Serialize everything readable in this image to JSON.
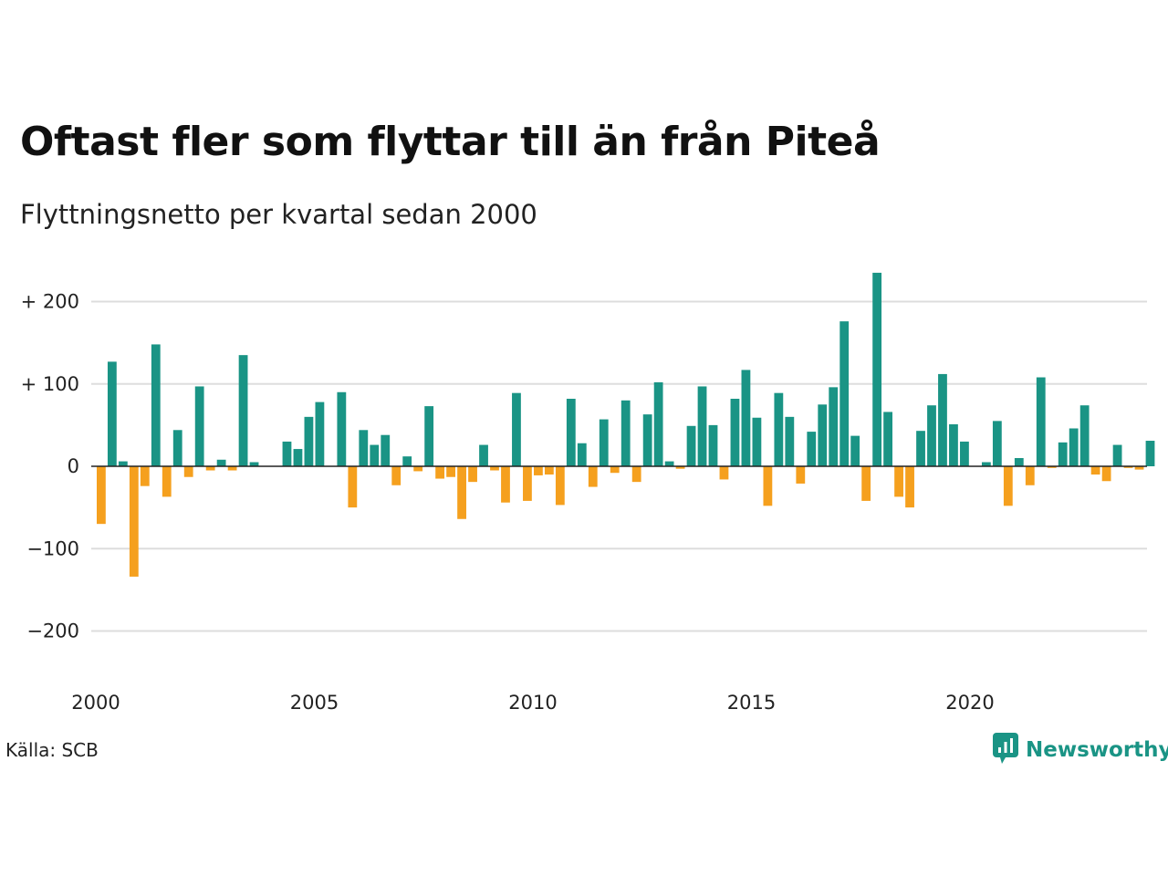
{
  "title": "Oftast fler som flyttar till än från Piteå",
  "subtitle": "Flyttningsnetto per kvartal sedan 2000",
  "source": "Källa: SCB",
  "brand": {
    "name": "Newsworthy",
    "icon": "newsworthy-logo-icon"
  },
  "colors": {
    "positive": "#1a9485",
    "negative": "#f5a01e",
    "grid": "#dddddd",
    "zero": "#222222"
  },
  "chart_data": {
    "type": "bar",
    "title": "Oftast fler som flyttar till än från Piteå",
    "subtitle": "Flyttningsnetto per kvartal sedan 2000",
    "xlabel": "",
    "ylabel": "",
    "ylim": [
      -250,
      250
    ],
    "xlim": [
      2000,
      2024.1
    ],
    "grid": true,
    "y_ticks": [
      200,
      100,
      0,
      -100,
      -200
    ],
    "y_tick_labels": [
      "+ 200",
      "+ 100",
      "0",
      "−100",
      "−200"
    ],
    "x_ticks": [
      2000,
      2005,
      2010,
      2015,
      2020
    ],
    "x_tick_labels": [
      "2000",
      "2005",
      "2010",
      "2015",
      "2020"
    ],
    "categories": [
      "2000K1",
      "2000K2",
      "2000K3",
      "2000K4",
      "2001K1",
      "2001K2",
      "2001K3",
      "2001K4",
      "2002K1",
      "2002K2",
      "2002K3",
      "2002K4",
      "2003K1",
      "2003K2",
      "2003K3",
      "2003K4",
      "2004K1",
      "2004K2",
      "2004K3",
      "2004K4",
      "2005K1",
      "2005K2",
      "2005K3",
      "2005K4",
      "2006K1",
      "2006K2",
      "2006K3",
      "2006K4",
      "2007K1",
      "2007K2",
      "2007K3",
      "2007K4",
      "2008K1",
      "2008K2",
      "2008K3",
      "2008K4",
      "2009K1",
      "2009K2",
      "2009K3",
      "2009K4",
      "2010K1",
      "2010K2",
      "2010K3",
      "2010K4",
      "2011K1",
      "2011K2",
      "2011K3",
      "2011K4",
      "2012K1",
      "2012K2",
      "2012K3",
      "2012K4",
      "2013K1",
      "2013K2",
      "2013K3",
      "2013K4",
      "2014K1",
      "2014K2",
      "2014K3",
      "2014K4",
      "2015K1",
      "2015K2",
      "2015K3",
      "2015K4",
      "2016K1",
      "2016K2",
      "2016K3",
      "2016K4",
      "2017K1",
      "2017K2",
      "2017K3",
      "2017K4",
      "2018K1",
      "2018K2",
      "2018K3",
      "2018K4",
      "2019K1",
      "2019K2",
      "2019K3",
      "2019K4",
      "2020K1",
      "2020K2",
      "2020K3",
      "2020K4",
      "2021K1",
      "2021K2",
      "2021K3",
      "2021K4",
      "2022K1",
      "2022K2",
      "2022K3",
      "2022K4",
      "2023K1",
      "2023K2",
      "2023K3",
      "2023K4",
      "2024K1"
    ],
    "values": [
      -70,
      127,
      6,
      -134,
      -24,
      148,
      -37,
      44,
      -13,
      97,
      -5,
      8,
      -5,
      135,
      5,
      0,
      0,
      30,
      21,
      60,
      78,
      0,
      90,
      -50,
      44,
      26,
      38,
      -23,
      12,
      -6,
      73,
      -15,
      -13,
      -64,
      -19,
      26,
      -5,
      -44,
      89,
      -42,
      -11,
      -10,
      -47,
      82,
      28,
      -25,
      57,
      -8,
      80,
      -19,
      63,
      102,
      6,
      -3,
      49,
      97,
      50,
      -16,
      82,
      117,
      59,
      -48,
      89,
      60,
      -21,
      42,
      75,
      96,
      176,
      37,
      -42,
      235,
      66,
      -37,
      -50,
      43,
      74,
      112,
      51,
      30,
      0,
      5,
      55,
      -48,
      10,
      -23,
      108,
      -2,
      29,
      46,
      74,
      -10,
      -18,
      26,
      -2,
      -4,
      31
    ]
  }
}
